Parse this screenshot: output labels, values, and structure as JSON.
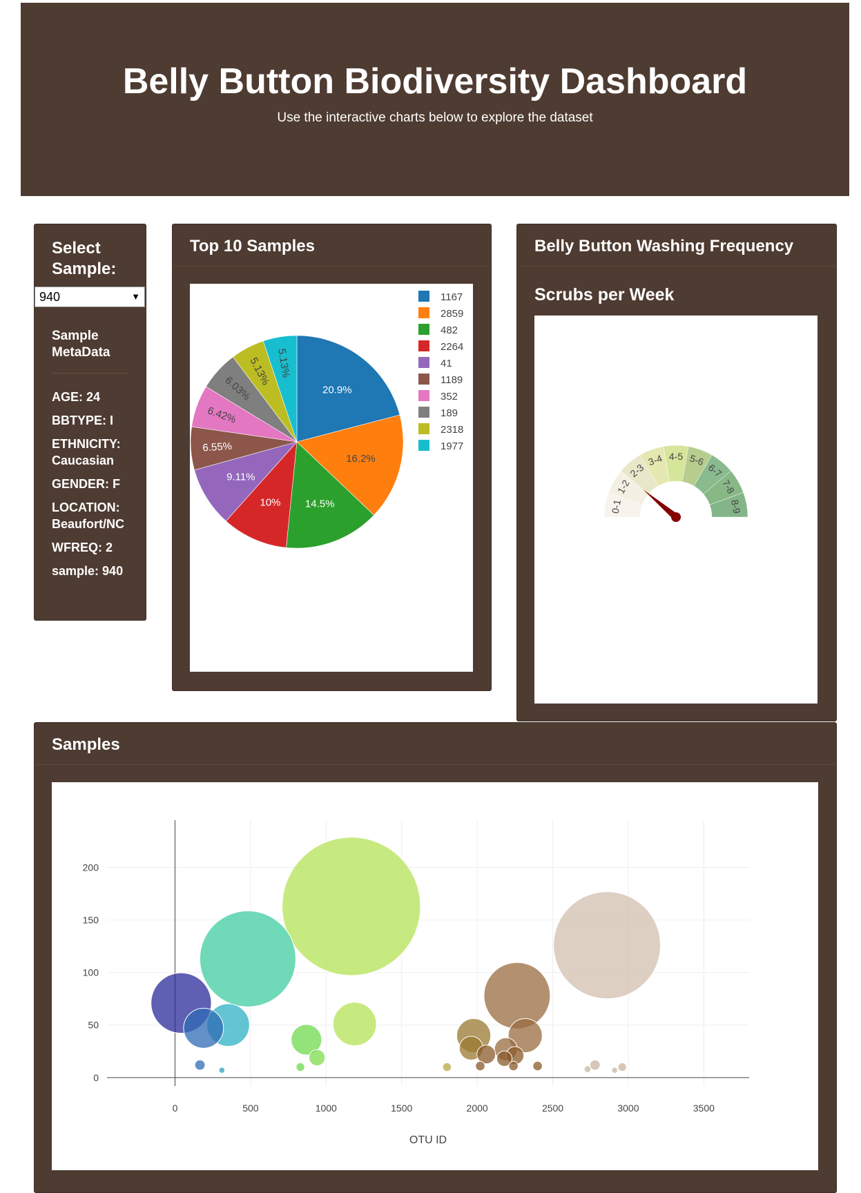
{
  "header": {
    "title": "Belly Button Biodiversity Dashboard",
    "subtitle": "Use the interactive charts below to explore the dataset"
  },
  "selector": {
    "title": "Select Sample:",
    "value": "940",
    "metadata_title": "Sample MetaData",
    "metadata": [
      {
        "key": "AGE",
        "value": "24"
      },
      {
        "key": "BBTYPE",
        "value": "I"
      },
      {
        "key": "ETHNICITY",
        "value": "Caucasian"
      },
      {
        "key": "GENDER",
        "value": "F"
      },
      {
        "key": "LOCATION",
        "value": "Beaufort/NC"
      },
      {
        "key": "WFREQ",
        "value": "2"
      },
      {
        "key": "sample",
        "value": "940"
      }
    ]
  },
  "pie_panel": {
    "title": "Top 10 Samples"
  },
  "gauge_panel": {
    "title": "Belly Button Washing Frequency",
    "subtitle": "Scrubs per Week"
  },
  "bubble_panel": {
    "title": "Samples"
  },
  "colors": {
    "panel": "#4e3b31",
    "pie": [
      "#1f77b4",
      "#ff7f0e",
      "#2ca02c",
      "#d62728",
      "#9467bd",
      "#8c564b",
      "#e377c2",
      "#7f7f7f",
      "#bcbd22",
      "#17becf"
    ],
    "needle": "#850000"
  },
  "chart_data": [
    {
      "type": "pie",
      "title": "",
      "labels": [
        "1167",
        "2859",
        "482",
        "2264",
        "41",
        "1189",
        "352",
        "189",
        "2318",
        "1977"
      ],
      "values": [
        163,
        126,
        113,
        78,
        71,
        51,
        50,
        47,
        40,
        40
      ],
      "percent_labels": [
        "20.9%",
        "16.2%",
        "14.5%",
        "10%",
        "9.11%",
        "6.55%",
        "6.42%",
        "6.03%",
        "5.13%",
        "5.13%"
      ],
      "legend": "top-right"
    },
    {
      "type": "gauge",
      "title": "",
      "ranges": [
        "0-1",
        "1-2",
        "2-3",
        "3-4",
        "4-5",
        "5-6",
        "6-7",
        "7-8",
        "8-9"
      ],
      "range_colors": [
        "#f8f3ec",
        "#f4f1e4",
        "#e9e7c9",
        "#e5e8b0",
        "#d5e599",
        "#b7cd8f",
        "#8abb8f",
        "#88b886",
        "#84b588"
      ],
      "value": 2,
      "max": 9
    },
    {
      "type": "scatter",
      "title": "",
      "xlabel": "OTU ID",
      "ylabel": "",
      "xlim": [
        -450,
        3800
      ],
      "ylim": [
        -8,
        245
      ],
      "xticks": [
        0,
        500,
        1000,
        1500,
        2000,
        2500,
        3000,
        3500
      ],
      "yticks": [
        0,
        50,
        100,
        150,
        200
      ],
      "grid": true,
      "points": [
        {
          "x": 41,
          "y": 71,
          "color": "#2a2a9a"
        },
        {
          "x": 189,
          "y": 47,
          "color": "#2e6bb4"
        },
        {
          "x": 352,
          "y": 50,
          "color": "#2fb0c4"
        },
        {
          "x": 482,
          "y": 113,
          "color": "#3fcca0"
        },
        {
          "x": 1167,
          "y": 163,
          "color": "#b4e356"
        },
        {
          "x": 1189,
          "y": 51,
          "color": "#b4e356"
        },
        {
          "x": 870,
          "y": 36,
          "color": "#6fd84e"
        },
        {
          "x": 940,
          "y": 19,
          "color": "#7fdc50"
        },
        {
          "x": 830,
          "y": 10,
          "color": "#6fd84e"
        },
        {
          "x": 165,
          "y": 12,
          "color": "#2e6bb4"
        },
        {
          "x": 310,
          "y": 7,
          "color": "#2fa0c4"
        },
        {
          "x": 1800,
          "y": 10,
          "color": "#b8a63e"
        },
        {
          "x": 2264,
          "y": 78,
          "color": "#9a6c40"
        },
        {
          "x": 2318,
          "y": 40,
          "color": "#9a6c40"
        },
        {
          "x": 1977,
          "y": 40,
          "color": "#9a7830"
        },
        {
          "x": 1960,
          "y": 28,
          "color": "#9a7830"
        },
        {
          "x": 2060,
          "y": 22,
          "color": "#8a5a2a"
        },
        {
          "x": 2190,
          "y": 27,
          "color": "#9a6c40"
        },
        {
          "x": 2180,
          "y": 18,
          "color": "#8a5a2a"
        },
        {
          "x": 2250,
          "y": 21,
          "color": "#8a5a2a"
        },
        {
          "x": 2020,
          "y": 11,
          "color": "#8a5a2a"
        },
        {
          "x": 2240,
          "y": 11,
          "color": "#8a5a2a"
        },
        {
          "x": 2400,
          "y": 11,
          "color": "#8a5a2a"
        },
        {
          "x": 2859,
          "y": 126,
          "color": "#d2bfae"
        },
        {
          "x": 2780,
          "y": 12,
          "color": "#c9b4a2"
        },
        {
          "x": 2960,
          "y": 10,
          "color": "#c9b4a2"
        },
        {
          "x": 2730,
          "y": 8,
          "color": "#c9b4a2"
        },
        {
          "x": 2910,
          "y": 7,
          "color": "#c9b4a2"
        }
      ]
    }
  ]
}
